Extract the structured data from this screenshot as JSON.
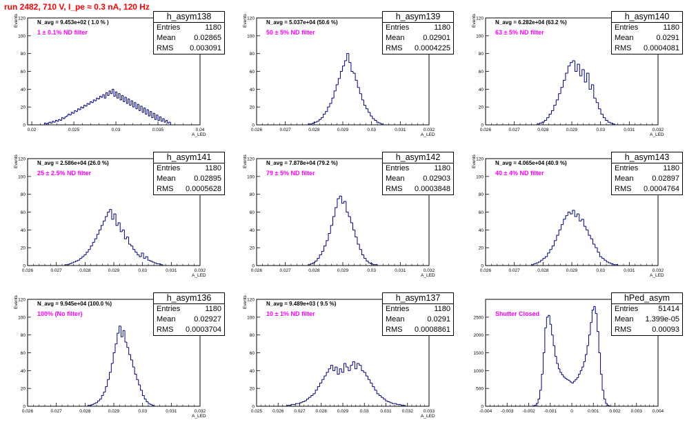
{
  "canvas_title": "run 2482,   710 V, I_pe ≈ 0.3 nA, 120 Hz",
  "stat_labels": {
    "entries": "Entries",
    "mean": "Mean",
    "rms": "RMS"
  },
  "colors": {
    "histogram": "#000080",
    "title": "#ff0000",
    "filter_label": "#ff00ff"
  },
  "chart_data": [
    {
      "type": "bar",
      "hist_name": "h_asym138",
      "navg": "N_avg = 9.453e+02 ( 1.0 % )",
      "filter": "1 ± 0.1% ND filter",
      "entries": "1180",
      "mean": "0.02865",
      "rms": "0.003091",
      "xlabel": "A_LED",
      "ylabel": "Events",
      "xlim": [
        0.0195,
        0.04
      ],
      "ylim": [
        0,
        120
      ],
      "xticks": [
        0.02,
        0.025,
        0.03,
        0.035,
        0.04
      ],
      "xtick_labels": [
        "0.02",
        "0.025",
        "0.03",
        "0.035",
        "0.04"
      ],
      "yticks": [
        0,
        20,
        40,
        60,
        80,
        100,
        120
      ],
      "bin_edges_range": [
        0.0215,
        0.0365
      ],
      "values": [
        2,
        1,
        2,
        3,
        2,
        4,
        3,
        5,
        4,
        6,
        5,
        8,
        7,
        9,
        10,
        12,
        11,
        14,
        13,
        16,
        15,
        18,
        17,
        20,
        19,
        22,
        21,
        24,
        23,
        26,
        25,
        28,
        27,
        30,
        29,
        32,
        31,
        34,
        30,
        36,
        33,
        38,
        35,
        40,
        32,
        37,
        30,
        35,
        28,
        33,
        26,
        31,
        24,
        29,
        22,
        27,
        20,
        25,
        18,
        23,
        16,
        21,
        14,
        19,
        12,
        17,
        10,
        15,
        8,
        13,
        6,
        11,
        5,
        9,
        4,
        7,
        3,
        5,
        2,
        3
      ]
    },
    {
      "type": "bar",
      "hist_name": "h_asym139",
      "navg": "N_avg = 5.037e+04 (50.6 %)",
      "filter": "50 ± 5% ND filter",
      "entries": "1180",
      "mean": "0.02901",
      "rms": "0.0004225",
      "xlabel": "A_LED",
      "ylabel": "Events",
      "xlim": [
        0.026,
        0.032
      ],
      "ylim": [
        0,
        120
      ],
      "xticks": [
        0.026,
        0.027,
        0.028,
        0.029,
        0.03,
        0.031,
        0.032
      ],
      "xtick_labels": [
        "0.026",
        "0.027",
        "0.028",
        "0.029",
        "0.03",
        "0.031",
        "0.032"
      ],
      "yticks": [
        0,
        20,
        40,
        60,
        80,
        100,
        120
      ],
      "bin_edges_range": [
        0.0278,
        0.0304
      ],
      "values": [
        1,
        1,
        2,
        3,
        4,
        6,
        8,
        12,
        15,
        20,
        24,
        30,
        38,
        45,
        52,
        60,
        66,
        72,
        80,
        70,
        60,
        58,
        50,
        42,
        35,
        28,
        22,
        18,
        14,
        10,
        7,
        5,
        3,
        2,
        1
      ]
    },
    {
      "type": "bar",
      "hist_name": "h_asym140",
      "navg": "N_avg = 6.282e+04 (63.2 %)",
      "filter": "63 ± 5% ND filter",
      "entries": "1180",
      "mean": "0.0291",
      "rms": "0.0004081",
      "xlabel": "A_LED",
      "ylabel": "Events",
      "xlim": [
        0.026,
        0.032
      ],
      "ylim": [
        0,
        120
      ],
      "xticks": [
        0.026,
        0.027,
        0.028,
        0.029,
        0.03,
        0.031,
        0.032
      ],
      "xtick_labels": [
        "0.026",
        "0.027",
        "0.028",
        "0.029",
        "0.03",
        "0.031",
        "0.032"
      ],
      "yticks": [
        0,
        20,
        40,
        60,
        80,
        100,
        120
      ],
      "bin_edges_range": [
        0.0278,
        0.0305
      ],
      "values": [
        1,
        2,
        3,
        5,
        8,
        12,
        16,
        22,
        28,
        35,
        42,
        50,
        58,
        66,
        70,
        72,
        60,
        68,
        55,
        62,
        48,
        58,
        40,
        45,
        30,
        25,
        18,
        12,
        8,
        5,
        3,
        2,
        1
      ]
    },
    {
      "type": "bar",
      "hist_name": "h_asym141",
      "navg": "N_avg = 2.586e+04 (26.0 %)",
      "filter": "25 ± 2.5% ND filter",
      "entries": "1180",
      "mean": "0.02895",
      "rms": "0.0005628",
      "xlabel": "A_LED",
      "ylabel": "Events",
      "xlim": [
        0.026,
        0.032
      ],
      "ylim": [
        0,
        120
      ],
      "xticks": [
        0.026,
        0.027,
        0.028,
        0.029,
        0.03,
        0.031,
        0.032
      ],
      "xtick_labels": [
        "0.026",
        "0.027",
        "0.028",
        "0.029",
        "0.03",
        "0.031",
        "0.032"
      ],
      "yticks": [
        0,
        20,
        40,
        60,
        80,
        100,
        120
      ],
      "bin_edges_range": [
        0.0273,
        0.0307
      ],
      "values": [
        1,
        1,
        2,
        3,
        4,
        5,
        6,
        8,
        10,
        12,
        15,
        18,
        22,
        26,
        30,
        35,
        40,
        45,
        50,
        55,
        60,
        63,
        52,
        58,
        45,
        48,
        38,
        40,
        30,
        32,
        24,
        22,
        18,
        15,
        12,
        10,
        14,
        8,
        10,
        6,
        5,
        4,
        3,
        2,
        2,
        1
      ]
    },
    {
      "type": "bar",
      "hist_name": "h_asym142",
      "navg": "N_avg = 7.878e+04 (79.2 %)",
      "filter": "79 ± 5% ND filter",
      "entries": "1180",
      "mean": "0.02903",
      "rms": "0.0003848",
      "xlabel": "A_LED",
      "ylabel": "Events",
      "xlim": [
        0.026,
        0.032
      ],
      "ylim": [
        0,
        120
      ],
      "xticks": [
        0.026,
        0.027,
        0.028,
        0.029,
        0.03,
        0.031,
        0.032
      ],
      "xtick_labels": [
        "0.026",
        "0.027",
        "0.028",
        "0.029",
        "0.03",
        "0.031",
        "0.032"
      ],
      "yticks": [
        0,
        20,
        40,
        60,
        80,
        100,
        120
      ],
      "bin_edges_range": [
        0.0278,
        0.0302
      ],
      "values": [
        1,
        2,
        3,
        5,
        8,
        12,
        16,
        22,
        28,
        36,
        45,
        55,
        65,
        75,
        78,
        70,
        72,
        60,
        55,
        48,
        40,
        32,
        24,
        18,
        12,
        8,
        5,
        3,
        2,
        1,
        1
      ]
    },
    {
      "type": "bar",
      "hist_name": "h_asym143",
      "navg": "N_avg = 4.065e+04 (40.9 %)",
      "filter": "40 ± 4% ND filter",
      "entries": "1180",
      "mean": "0.02897",
      "rms": "0.0004764",
      "xlabel": "A_LED",
      "ylabel": "Events",
      "xlim": [
        0.026,
        0.032
      ],
      "ylim": [
        0,
        120
      ],
      "xticks": [
        0.026,
        0.027,
        0.028,
        0.029,
        0.03,
        0.031,
        0.032
      ],
      "xtick_labels": [
        "0.026",
        "0.027",
        "0.028",
        "0.029",
        "0.03",
        "0.031",
        "0.032"
      ],
      "yticks": [
        0,
        20,
        40,
        60,
        80,
        100,
        120
      ],
      "bin_edges_range": [
        0.0276,
        0.0306
      ],
      "values": [
        1,
        2,
        3,
        4,
        6,
        8,
        10,
        14,
        18,
        22,
        28,
        34,
        40,
        46,
        52,
        56,
        60,
        58,
        62,
        55,
        58,
        50,
        52,
        44,
        40,
        34,
        30,
        24,
        20,
        15,
        10,
        8,
        6,
        4,
        3,
        2,
        1,
        1
      ]
    },
    {
      "type": "bar",
      "hist_name": "h_asym136",
      "navg": "N_avg = 9.945e+04 (100.0 %)",
      "filter": "100% (No filter)",
      "entries": "1180",
      "mean": "0.02927",
      "rms": "0.0003704",
      "xlabel": "A_LED",
      "ylabel": "Events",
      "xlim": [
        0.026,
        0.032
      ],
      "ylim": [
        0,
        120
      ],
      "xticks": [
        0.026,
        0.027,
        0.028,
        0.029,
        0.03,
        0.031,
        0.032
      ],
      "xtick_labels": [
        "0.026",
        "0.027",
        "0.028",
        "0.029",
        "0.03",
        "0.031",
        "0.032"
      ],
      "yticks": [
        0,
        20,
        40,
        60,
        80,
        100,
        120
      ],
      "bin_edges_range": [
        0.0281,
        0.0304
      ],
      "values": [
        1,
        1,
        2,
        3,
        4,
        6,
        8,
        12,
        16,
        22,
        30,
        38,
        48,
        60,
        70,
        82,
        90,
        78,
        85,
        72,
        66,
        58,
        52,
        44,
        36,
        30,
        24,
        18,
        12,
        8,
        5,
        3,
        2,
        1
      ]
    },
    {
      "type": "bar",
      "hist_name": "h_asym137",
      "navg": "N_avg = 9.489e+03 ( 9.5 %)",
      "filter": "10 ± 1% ND filter",
      "entries": "1180",
      "mean": "0.0291",
      "rms": "0.0008861",
      "xlabel": "A_LED",
      "ylabel": "Events",
      "xlim": [
        0.025,
        0.033
      ],
      "ylim": [
        0,
        120
      ],
      "xticks": [
        0.025,
        0.026,
        0.027,
        0.028,
        0.029,
        0.03,
        0.031,
        0.032,
        0.033
      ],
      "xtick_labels": [
        "0.025",
        "0.026",
        "0.027",
        "0.028",
        "0.029",
        "0.03",
        "0.031",
        "0.032",
        "0.033"
      ],
      "yticks": [
        0,
        20,
        40,
        60,
        80,
        100,
        120
      ],
      "bin_edges_range": [
        0.0264,
        0.0319
      ],
      "values": [
        1,
        1,
        2,
        2,
        3,
        3,
        4,
        5,
        6,
        8,
        10,
        12,
        14,
        18,
        22,
        26,
        30,
        34,
        38,
        42,
        46,
        40,
        44,
        36,
        42,
        38,
        48,
        44,
        40,
        46,
        50,
        42,
        48,
        46,
        40,
        38,
        34,
        30,
        26,
        22,
        18,
        14,
        12,
        10,
        8,
        6,
        5,
        4,
        3,
        3,
        2,
        2,
        1,
        1
      ]
    },
    {
      "type": "bar",
      "hist_name": "hPed_asym",
      "navg": "",
      "filter": "Shutter Closed",
      "entries": "51414",
      "mean": "1.399e-05",
      "rms": "0.00093",
      "xlabel": "",
      "ylabel": "",
      "xlim": [
        -0.004,
        0.004
      ],
      "ylim": [
        0,
        3000
      ],
      "xticks": [
        -0.004,
        -0.003,
        -0.002,
        -0.001,
        0,
        0.001,
        0.002,
        0.003,
        0.004
      ],
      "xtick_labels": [
        "-0.004",
        "-0.003",
        "-0.002",
        "-0.001",
        "0",
        "0.001",
        "0.002",
        "0.003",
        "0.004"
      ],
      "yticks": [
        0,
        500,
        1000,
        1500,
        2000,
        2500
      ],
      "bin_edges_range": [
        -0.0018,
        0.0018
      ],
      "values": [
        10,
        30,
        80,
        200,
        450,
        900,
        1500,
        2200,
        2500,
        2550,
        2300,
        2000,
        1700,
        1400,
        1200,
        1050,
        950,
        880,
        820,
        780,
        750,
        720,
        680,
        650,
        700,
        750,
        800,
        900,
        1000,
        1100,
        1250,
        1450,
        1700,
        2000,
        2350,
        2700,
        2800,
        2600,
        2100,
        1500,
        900,
        450,
        200,
        80,
        30,
        10
      ]
    }
  ]
}
